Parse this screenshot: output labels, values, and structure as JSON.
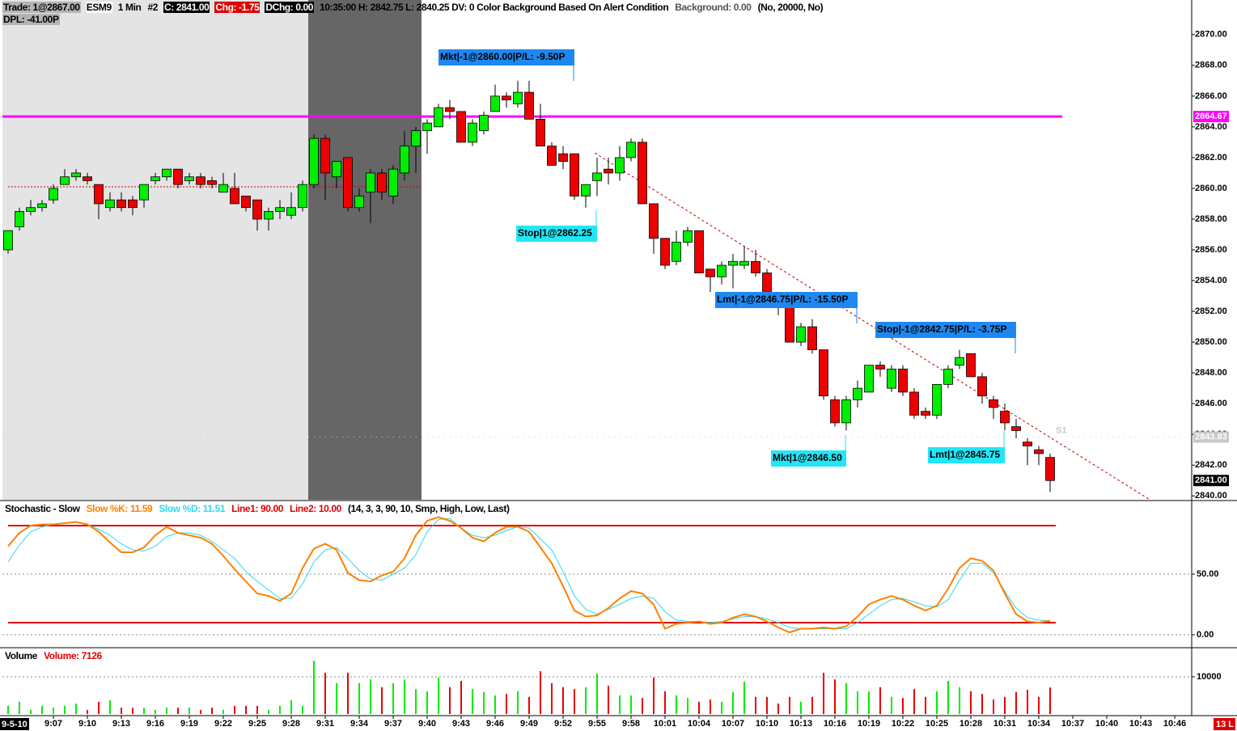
{
  "header": {
    "items": [
      {
        "text": "Trade: 1@2867.00",
        "bg": "#b4b4b4",
        "fg": "#000000"
      },
      {
        "text": "ESM9",
        "bg": "#ffffff",
        "fg": "#000000"
      },
      {
        "text": "1 Min",
        "fg": "#000000"
      },
      {
        "text": "#2",
        "fg": "#000000"
      },
      {
        "text": "C: 2841.00",
        "bg": "#000000",
        "fg": "#ffffff"
      },
      {
        "text": "Chg: -1.75",
        "bg": "#e00000",
        "fg": "#ffffff"
      },
      {
        "text": "DChg: 0.00",
        "bg": "#000000",
        "fg": "#ffffff"
      },
      {
        "text": "10:35:00 H: 2842.75 L: 2840.25 DV: 0 Color Background Based On Alert Condition",
        "fg": "#000000"
      },
      {
        "text": "Background: 0.00",
        "fg": "#555555"
      },
      {
        "text": "(No, 20000, No)",
        "fg": "#000000"
      }
    ],
    "second_row": {
      "text": "DPL: -41.00P",
      "bg": "#b4b4b4",
      "fg": "#000000"
    },
    "status": {
      "text": "13 L",
      "bg": "#e00000",
      "fg": "#ffffff"
    }
  },
  "chart_data": [
    {
      "type": "candlestick",
      "up_color": "#00ee00",
      "down_color": "#ee0000",
      "open": [
        2856,
        2857.5,
        2858.5,
        2858.75,
        2859.25,
        2860.25,
        2860.75,
        2860.75,
        2860.25,
        2858.75,
        2859.25,
        2859.25,
        2859.25,
        2860.5,
        2860.75,
        2861.25,
        2860.5,
        2860.75,
        2860.5,
        2859.75,
        2860,
        2859.5,
        2859.25,
        2858,
        2858.5,
        2858.25,
        2858.75,
        2860.25,
        2863.25,
        2860.75,
        2862,
        2858.75,
        2859.75,
        2861,
        2859.5,
        2861,
        2862.75,
        2863.75,
        2864,
        2865.25,
        2865,
        2863,
        2863.75,
        2865,
        2866,
        2865.5,
        2866.25,
        2864.5,
        2862.75,
        2862.25,
        2862.25,
        2859.5,
        2860.5,
        2861.25,
        2861,
        2862,
        2863,
        2859,
        2856.75,
        2855.25,
        2856.5,
        2857.25,
        2854.75,
        2854.25,
        2855,
        2855,
        2855.25,
        2854.5,
        2853,
        2852.25,
        2850,
        2851,
        2849.5,
        2846.25,
        2844.75,
        2846.25,
        2846.75,
        2848.5,
        2847,
        2848.25,
        2846.75,
        2845.5,
        2845.25,
        2847.25,
        2848.5,
        2849.25,
        2847.75,
        2846.25,
        2845.5,
        2844.5,
        2843.5,
        2843,
        2842.5
      ],
      "high": [
        2857.25,
        2858.75,
        2859.25,
        2859.25,
        2860.25,
        2861.25,
        2861.25,
        2861,
        2860.25,
        2859.75,
        2859.75,
        2859.5,
        2860.25,
        2861,
        2861.25,
        2861.25,
        2861,
        2861,
        2860.75,
        2861,
        2861,
        2859.5,
        2859.25,
        2858.75,
        2859.25,
        2859.75,
        2860.5,
        2863.5,
        2863.5,
        2861.75,
        2862,
        2860,
        2861.25,
        2861.25,
        2861.5,
        2863.75,
        2864,
        2864.5,
        2865.5,
        2865.75,
        2865,
        2864.5,
        2865,
        2866.75,
        2866.25,
        2867,
        2867,
        2865.5,
        2863,
        2862.75,
        2862.25,
        2860.25,
        2862,
        2862,
        2862.75,
        2863.25,
        2863.25,
        2859,
        2856.75,
        2857.25,
        2857.5,
        2857.25,
        2854.75,
        2855.25,
        2855.75,
        2856.25,
        2856,
        2854.75,
        2853.25,
        2852.5,
        2851.25,
        2851.5,
        2849.5,
        2846.5,
        2846.5,
        2847.5,
        2848.5,
        2848.75,
        2848.5,
        2848.5,
        2847,
        2845.75,
        2847.25,
        2848.5,
        2849.5,
        2849.25,
        2848,
        2846.5,
        2846,
        2845,
        2843.75,
        2843.25,
        2842.75
      ],
      "low": [
        2855.75,
        2857.25,
        2858.25,
        2858.5,
        2859,
        2860.25,
        2860.5,
        2860.25,
        2858,
        2858.5,
        2858.5,
        2858.25,
        2858.75,
        2860.25,
        2860.5,
        2860,
        2860.25,
        2860,
        2860,
        2859.75,
        2859,
        2858.5,
        2857.25,
        2857.25,
        2858,
        2858,
        2858.5,
        2860,
        2859.25,
        2860,
        2858.5,
        2858.5,
        2857.75,
        2859.25,
        2859,
        2860.5,
        2861,
        2862.25,
        2864,
        2864.5,
        2863,
        2862.75,
        2863.5,
        2865,
        2865.25,
        2865.25,
        2864.5,
        2862.75,
        2861.5,
        2861.25,
        2859.25,
        2858.75,
        2859.5,
        2860.25,
        2860.5,
        2861.75,
        2859,
        2855.75,
        2854.75,
        2855,
        2856.25,
        2854.5,
        2853.25,
        2853.75,
        2853.5,
        2854.75,
        2854.25,
        2852.75,
        2851.75,
        2850,
        2849.75,
        2849.25,
        2846.25,
        2844.5,
        2844.25,
        2845.75,
        2846.75,
        2847.75,
        2846.75,
        2846.5,
        2845,
        2845,
        2845,
        2847,
        2848.25,
        2847.75,
        2846,
        2845,
        2844.25,
        2843.75,
        2842,
        2842,
        2840.25
      ],
      "close": [
        2857.25,
        2858.5,
        2858.75,
        2859,
        2860,
        2860.75,
        2861,
        2860.5,
        2859,
        2859.25,
        2858.75,
        2858.75,
        2860.25,
        2860.75,
        2861.25,
        2860.25,
        2860.75,
        2860.25,
        2860.25,
        2860.25,
        2859,
        2858.75,
        2858,
        2858.5,
        2858.75,
        2858.75,
        2860.25,
        2863.25,
        2861,
        2861.75,
        2858.75,
        2859.5,
        2861,
        2859.75,
        2861.25,
        2862.75,
        2863.75,
        2864.25,
        2865.25,
        2865,
        2863,
        2864.25,
        2864.75,
        2866,
        2865.75,
        2866.25,
        2864.5,
        2862.75,
        2861.5,
        2861.75,
        2859.5,
        2860.25,
        2861,
        2861,
        2862,
        2863,
        2859,
        2856.75,
        2855,
        2856.5,
        2857.25,
        2854.5,
        2854.25,
        2855,
        2855.25,
        2855.25,
        2854.5,
        2853.25,
        2852.25,
        2850,
        2851,
        2849.5,
        2846.5,
        2844.75,
        2846.25,
        2847,
        2848.5,
        2848.25,
        2848.25,
        2846.75,
        2845.25,
        2845.25,
        2847.25,
        2848.25,
        2849,
        2847.75,
        2846.5,
        2845.75,
        2844.75,
        2844.25,
        2843.25,
        2842.75,
        2841
      ],
      "xlim": [
        -0.5,
        104.5
      ],
      "ylim": [
        2839.75,
        2872.25
      ],
      "yticks": [
        {
          "value": 2840,
          "label": "2840.00"
        },
        {
          "value": 2842,
          "label": "2842.00"
        },
        {
          "value": 2844,
          "label": "2844.00"
        },
        {
          "value": 2846,
          "label": "2846.00"
        },
        {
          "value": 2848,
          "label": "2848.00"
        },
        {
          "value": 2850,
          "label": "2850.00"
        },
        {
          "value": 2852,
          "label": "2852.00"
        },
        {
          "value": 2854,
          "label": "2854.00"
        },
        {
          "value": 2856,
          "label": "2856.00"
        },
        {
          "value": 2858,
          "label": "2858.00"
        },
        {
          "value": 2860,
          "label": "2860.00"
        },
        {
          "value": 2862,
          "label": "2862.00"
        },
        {
          "value": 2864,
          "label": "2864.00"
        },
        {
          "value": 2866,
          "label": "2866.00"
        },
        {
          "value": 2868,
          "label": "2868.00"
        },
        {
          "value": 2870,
          "label": "2870.00"
        }
      ],
      "shaded_regions": [
        {
          "from": -0.5,
          "to": 26.5,
          "color": "#e4e4e4"
        },
        {
          "from": 26.5,
          "to": 36.5,
          "color": "#666666"
        }
      ],
      "reference_line": {
        "value": 2860.1,
        "from": 0,
        "to": 36.5,
        "color": "#c00000"
      },
      "price_lines": [
        {
          "value": 2864.67,
          "label": "2864.67",
          "color": "#ff00ff",
          "box": "#ff00ff",
          "style": "solid"
        },
        {
          "value": 2843.83,
          "label": "2843.83",
          "color": "#c8c8c8",
          "box": "#c8c8c8",
          "style": "dotted"
        }
      ],
      "level_label": "S1",
      "last_price": {
        "value": 2841,
        "label": "2841.00",
        "box": "#000000"
      },
      "trendline": {
        "x": [
          51.8,
          100.7
        ],
        "y": [
          2862.3,
          2839.8
        ],
        "color": "#c00000"
      },
      "annotations": [
        {
          "text": "Mkt|-1@2860.00|P/L: -9.50P",
          "color": "#1e88f0"
        },
        {
          "text": "Stop|1@2862.25",
          "color": "#22e6f6"
        },
        {
          "text": "Lmt|-1@2846.75|P/L: -15.50P",
          "color": "#1e88f0"
        },
        {
          "text": "Stop|-1@2842.75|P/L: -3.75P",
          "color": "#1e88f0"
        },
        {
          "text": "Mkt|1@2846.50",
          "color": "#22e6f6"
        },
        {
          "text": "Lmt|1@2845.75",
          "color": "#22e6f6"
        }
      ]
    },
    {
      "type": "line",
      "title": "Stochastic - Slow",
      "params": "(14, 3, 3, 90, 10, Smp, High, Low, Last)",
      "ylim": [
        -10,
        110
      ],
      "yticks": [
        {
          "value": 0,
          "label": "0.00"
        },
        {
          "value": 50,
          "label": "50.00"
        }
      ],
      "series": [
        {
          "name": "Slow %K: 11.59",
          "color": "#ff8000",
          "values": [
            73,
            84,
            90,
            91,
            91,
            92,
            93,
            91,
            85,
            76,
            68,
            68,
            72,
            82,
            89,
            84,
            82,
            80,
            75,
            65,
            54,
            44,
            34,
            32,
            28,
            34,
            55,
            71,
            75,
            70,
            51,
            45,
            44,
            49,
            52,
            63,
            82,
            94,
            97,
            94,
            88,
            80,
            77,
            84,
            89,
            89,
            85,
            72,
            59,
            40,
            20,
            15,
            16,
            22,
            30,
            36,
            34,
            25,
            5,
            9,
            10,
            11,
            9,
            10,
            14,
            17,
            15,
            11,
            6,
            2,
            5,
            5,
            6,
            5,
            7,
            15,
            25,
            29,
            32,
            29,
            24,
            20,
            24,
            38,
            55,
            63,
            61,
            53,
            34,
            17,
            11,
            10,
            11.59
          ]
        },
        {
          "name": "Slow %D: 11.51",
          "color": "#30d8f0",
          "values": [
            60,
            74,
            85,
            89,
            91,
            92,
            93,
            91,
            87,
            82,
            75,
            70,
            69,
            73,
            81,
            84,
            84,
            82,
            77,
            70,
            63,
            52,
            44,
            37,
            30,
            30,
            42,
            60,
            70,
            72,
            63,
            53,
            46,
            45,
            50,
            55,
            66,
            85,
            95,
            96,
            88,
            82,
            80,
            82,
            86,
            89,
            88,
            79,
            70,
            52,
            32,
            21,
            17,
            21,
            25,
            30,
            32,
            30,
            19,
            12,
            11,
            11,
            10,
            11,
            13,
            15,
            15,
            13,
            10,
            6,
            5,
            5,
            5,
            5,
            5,
            10,
            17,
            24,
            29,
            30,
            27,
            24,
            23,
            29,
            45,
            59,
            59,
            51,
            36,
            22,
            14,
            12,
            11.51
          ]
        }
      ],
      "hlines": [
        {
          "value": 90,
          "name": "Line1: 90.00",
          "color": "#e00000"
        },
        {
          "value": 10,
          "name": "Line2: 10.00",
          "color": "#e00000"
        }
      ]
    },
    {
      "type": "bar",
      "title": "Volume",
      "legend": "Volume: 7126",
      "legend_color": "#e00000",
      "ylim": [
        0,
        17600
      ],
      "yticks": [
        10000
      ],
      "values": [
        2200,
        3300,
        1100,
        2200,
        1700,
        2200,
        2800,
        1100,
        3300,
        3700,
        1700,
        1700,
        1700,
        1100,
        1700,
        1700,
        1700,
        1100,
        1700,
        1100,
        2200,
        2200,
        2200,
        1100,
        2200,
        3700,
        2200,
        14300,
        11100,
        8300,
        11100,
        8300,
        9300,
        7200,
        8300,
        9300,
        6700,
        6100,
        9800,
        7200,
        8900,
        6700,
        5900,
        5000,
        5400,
        6100,
        4600,
        11500,
        8300,
        7200,
        6700,
        7200,
        10900,
        7600,
        5000,
        5000,
        4300,
        9800,
        6100,
        5000,
        4300,
        3300,
        3900,
        3300,
        5900,
        8700,
        4600,
        4600,
        2800,
        4600,
        3300,
        4600,
        11100,
        9300,
        8300,
        6100,
        6100,
        7200,
        4600,
        4300,
        6700,
        4600,
        6100,
        8900,
        7200,
        6100,
        5400,
        3900,
        4600,
        5900,
        6500,
        4600,
        7126
      ],
      "date_label": "9-5-10",
      "xticks": [
        {
          "value": 4,
          "label": "9:07"
        },
        {
          "value": 7,
          "label": "9:10"
        },
        {
          "value": 10,
          "label": "9:13"
        },
        {
          "value": 13,
          "label": "9:16"
        },
        {
          "value": 16,
          "label": "9:19"
        },
        {
          "value": 19,
          "label": "9:22"
        },
        {
          "value": 22,
          "label": "9:25"
        },
        {
          "value": 25,
          "label": "9:28"
        },
        {
          "value": 28,
          "label": "9:31"
        },
        {
          "value": 31,
          "label": "9:34"
        },
        {
          "value": 34,
          "label": "9:37"
        },
        {
          "value": 37,
          "label": "9:40"
        },
        {
          "value": 40,
          "label": "9:43"
        },
        {
          "value": 43,
          "label": "9:46"
        },
        {
          "value": 46,
          "label": "9:49"
        },
        {
          "value": 49,
          "label": "9:52"
        },
        {
          "value": 52,
          "label": "9:55"
        },
        {
          "value": 55,
          "label": "9:58"
        },
        {
          "value": 58,
          "label": "10:01"
        },
        {
          "value": 61,
          "label": "10:04"
        },
        {
          "value": 64,
          "label": "10:07"
        },
        {
          "value": 67,
          "label": "10:10"
        },
        {
          "value": 70,
          "label": "10:13"
        },
        {
          "value": 73,
          "label": "10:16"
        },
        {
          "value": 76,
          "label": "10:19"
        },
        {
          "value": 79,
          "label": "10:22"
        },
        {
          "value": 82,
          "label": "10:25"
        },
        {
          "value": 85,
          "label": "10:28"
        },
        {
          "value": 88,
          "label": "10:31"
        },
        {
          "value": 91,
          "label": "10:34"
        },
        {
          "value": 94,
          "label": "10:37"
        },
        {
          "value": 97,
          "label": "10:40"
        },
        {
          "value": 100,
          "label": "10:43"
        },
        {
          "value": 103,
          "label": "10:46"
        }
      ]
    }
  ]
}
